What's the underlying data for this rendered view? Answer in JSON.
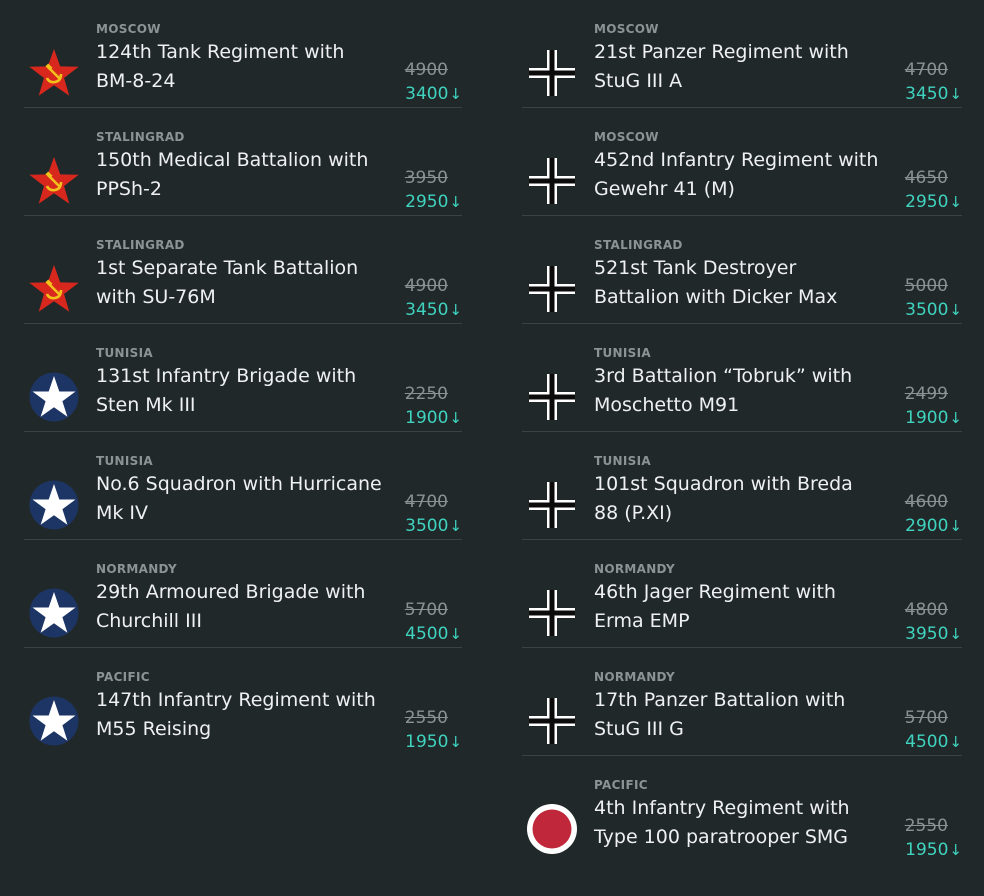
{
  "left_column": [
    {
      "region": "MOSCOW",
      "title": "124th Tank Regiment with\nBM-8-24",
      "old_price": "4900",
      "new_price": "3400",
      "flag": "soviet-star-icon"
    },
    {
      "region": "STALINGRAD",
      "title": "150th Medical Battalion with\nPPSh-2",
      "old_price": "3950",
      "new_price": "2950",
      "flag": "soviet-star-icon"
    },
    {
      "region": "STALINGRAD",
      "title": "1st Separate Tank Battalion\nwith SU-76M",
      "old_price": "4900",
      "new_price": "3450",
      "flag": "soviet-star-icon"
    },
    {
      "region": "TUNISIA",
      "title": "131st Infantry Brigade with\nSten Mk III",
      "old_price": "2250",
      "new_price": "1900",
      "flag": "allied-star-icon"
    },
    {
      "region": "TUNISIA",
      "title": "No.6 Squadron with Hurricane\nMk IV",
      "old_price": "4700",
      "new_price": "3500",
      "flag": "allied-star-icon"
    },
    {
      "region": "NORMANDY",
      "title": "29th Armoured Brigade with\nChurchill III",
      "old_price": "5700",
      "new_price": "4500",
      "flag": "allied-star-icon"
    },
    {
      "region": "PACIFIC",
      "title": "147th Infantry Regiment with\nM55 Reising",
      "old_price": "2550",
      "new_price": "1950",
      "flag": "allied-star-icon"
    }
  ],
  "right_column": [
    {
      "region": "MOSCOW",
      "title": "21st Panzer Regiment with\nStuG III A",
      "old_price": "4700",
      "new_price": "3450",
      "flag": "axis-cross-icon"
    },
    {
      "region": "MOSCOW",
      "title": "452nd Infantry Regiment with\nGewehr 41 (M)",
      "old_price": "4650",
      "new_price": "2950",
      "flag": "axis-cross-icon"
    },
    {
      "region": "STALINGRAD",
      "title": "521st Tank Destroyer\nBattalion with Dicker Max",
      "old_price": "5000",
      "new_price": "3500",
      "flag": "axis-cross-icon"
    },
    {
      "region": "TUNISIA",
      "title": "3rd Battalion “Tobruk” with\nMoschetto M91",
      "old_price": "2499",
      "new_price": "1900",
      "flag": "axis-cross-icon"
    },
    {
      "region": "TUNISIA",
      "title": "101st Squadron with Breda\n88 (P.XI)",
      "old_price": "4600",
      "new_price": "2900",
      "flag": "axis-cross-icon"
    },
    {
      "region": "NORMANDY",
      "title": "46th Jager Regiment with\nErma EMP",
      "old_price": "4800",
      "new_price": "3950",
      "flag": "axis-cross-icon"
    },
    {
      "region": "NORMANDY",
      "title": "17th Panzer Battalion with\nStuG III G",
      "old_price": "5700",
      "new_price": "4500",
      "flag": "axis-cross-icon"
    },
    {
      "region": "PACIFIC",
      "title": "4th Infantry Regiment with\nType 100 paratrooper SMG",
      "old_price": "2550",
      "new_price": "1950",
      "flag": "japan-roundel-icon"
    }
  ],
  "price_arrow": "↓",
  "colors": {
    "background": "#212829",
    "discount": "#3fd3c0",
    "old_price": "#8a9194",
    "divider": "#3b4345"
  }
}
